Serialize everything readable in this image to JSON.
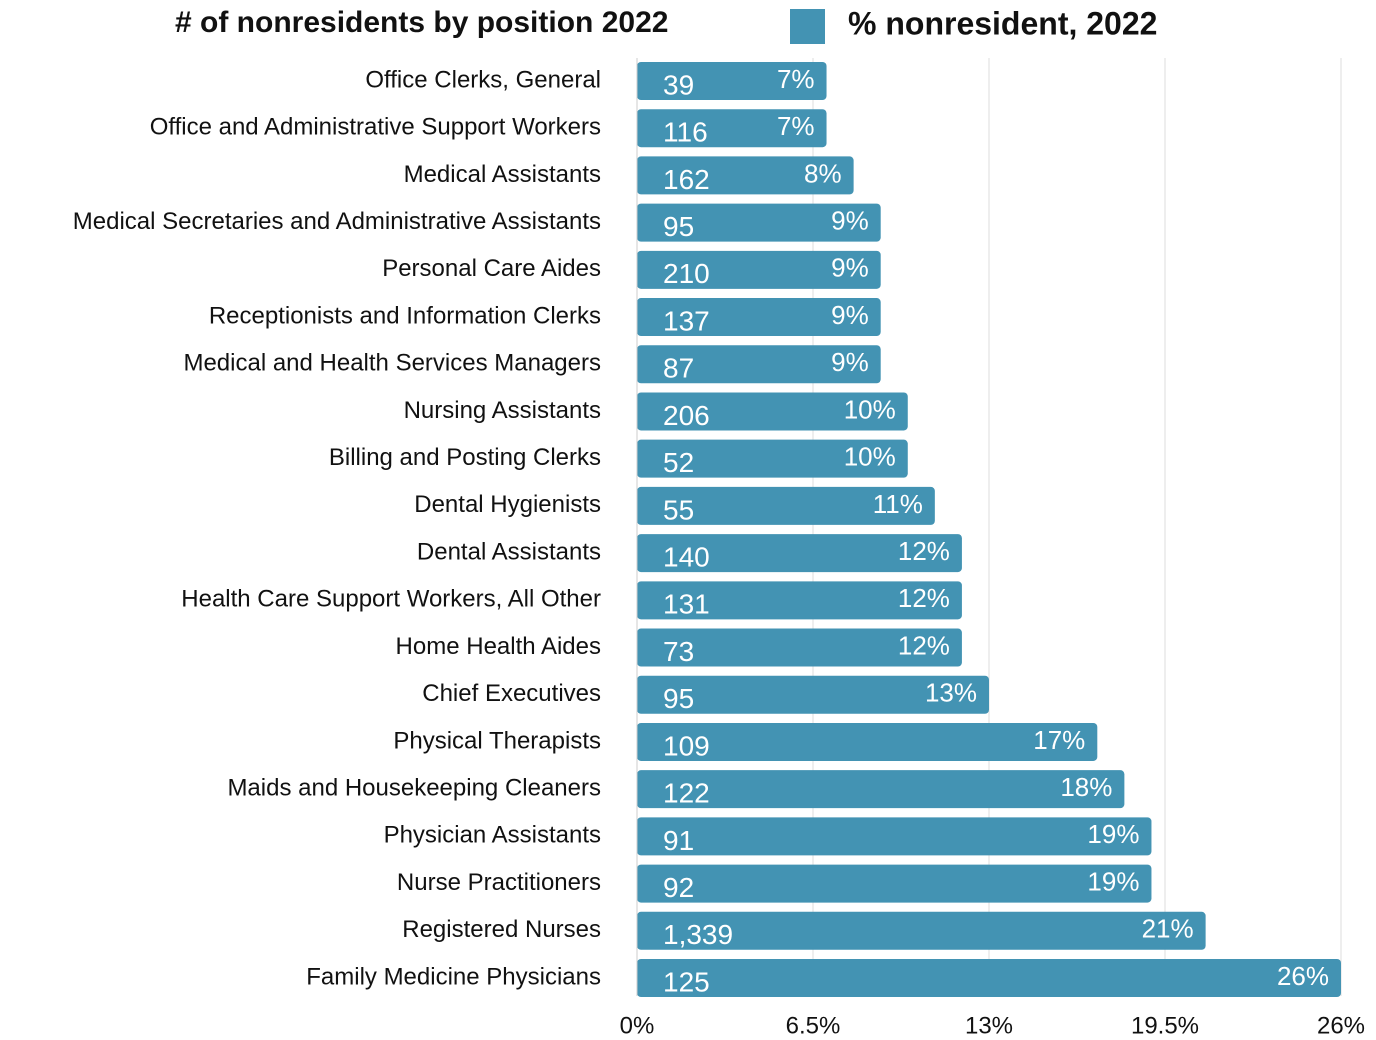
{
  "chart_data": {
    "type": "bar",
    "orientation": "horizontal",
    "title": "# of nonresidents by position 2022",
    "categories": [
      "Office Clerks, General",
      "Office and Administrative Support Workers",
      "Medical Assistants",
      "Medical Secretaries and Administrative Assistants",
      "Personal Care Aides",
      "Receptionists and Information Clerks",
      "Medical and Health Services Managers",
      "Nursing Assistants",
      "Billing and Posting Clerks",
      "Dental Hygienists",
      "Dental Assistants",
      "Health Care Support Workers, All Other",
      "Home Health Aides",
      "Chief Executives",
      "Physical Therapists",
      "Maids and Housekeeping Cleaners",
      "Physician Assistants",
      "Nurse Practitioners",
      "Registered Nurses",
      "Family Medicine Physicians"
    ],
    "counts": [
      39,
      116,
      162,
      95,
      210,
      137,
      87,
      206,
      52,
      55,
      140,
      131,
      73,
      95,
      109,
      122,
      91,
      92,
      1339,
      125
    ],
    "count_labels": [
      "39",
      "116",
      "162",
      "95",
      "210",
      "137",
      "87",
      "206",
      "52",
      "55",
      "140",
      "131",
      "73",
      "95",
      "109",
      "122",
      "91",
      "92",
      "1,339",
      "125"
    ],
    "series": [
      {
        "name": "% nonresident, 2022",
        "color": "#4393b3",
        "values": [
          7,
          7,
          8,
          9,
          9,
          9,
          9,
          10,
          10,
          11,
          12,
          12,
          12,
          13,
          17,
          18,
          19,
          19,
          21,
          26
        ],
        "value_labels": [
          "7%",
          "7%",
          "8%",
          "9%",
          "9%",
          "9%",
          "9%",
          "10%",
          "10%",
          "11%",
          "12%",
          "12%",
          "12%",
          "13%",
          "17%",
          "18%",
          "19%",
          "19%",
          "21%",
          "26%"
        ]
      }
    ],
    "xlim": [
      0,
      26
    ],
    "xticks": [
      {
        "value": 0,
        "label": "0%"
      },
      {
        "value": 6.5,
        "label": "6.5%"
      },
      {
        "value": 13,
        "label": "13%"
      },
      {
        "value": 19.5,
        "label": "19.5%"
      },
      {
        "value": 26,
        "label": "26%"
      }
    ],
    "grid": true
  }
}
